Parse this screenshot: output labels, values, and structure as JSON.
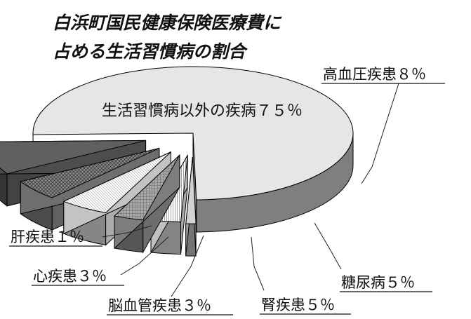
{
  "chart_data": {
    "type": "pie",
    "style": "3d-exploded",
    "title_lines": [
      "白浜町国民健康保険医療費に",
      "占める生活習慣病の割合"
    ],
    "slices": [
      {
        "name": "生活習慣病以外の疾病",
        "value_label": "７５％",
        "value": 75,
        "color": "#e6e6e6",
        "pattern": "solid"
      },
      {
        "name": "高血圧疾患",
        "value_label": "８％",
        "value": 8,
        "color": "#606060",
        "pattern": "solid"
      },
      {
        "name": "糖尿病",
        "value_label": "５％",
        "value": 5,
        "color": "#8a8a8a",
        "pattern": "crosshatch"
      },
      {
        "name": "腎疾患",
        "value_label": "５％",
        "value": 5,
        "color": "#f4f4f4",
        "pattern": "fine-grid"
      },
      {
        "name": "脳血管疾患",
        "value_label": "３％",
        "value": 3,
        "color": "#9c9c9c",
        "pattern": "dense-grid"
      },
      {
        "name": "心疾患",
        "value_label": "３％",
        "value": 3,
        "color": "#f0f0f0",
        "pattern": "vertical-lines"
      },
      {
        "name": "肝疾患",
        "value_label": "１％",
        "value": 1,
        "color": "#d2d2d2",
        "pattern": "solid"
      }
    ]
  }
}
